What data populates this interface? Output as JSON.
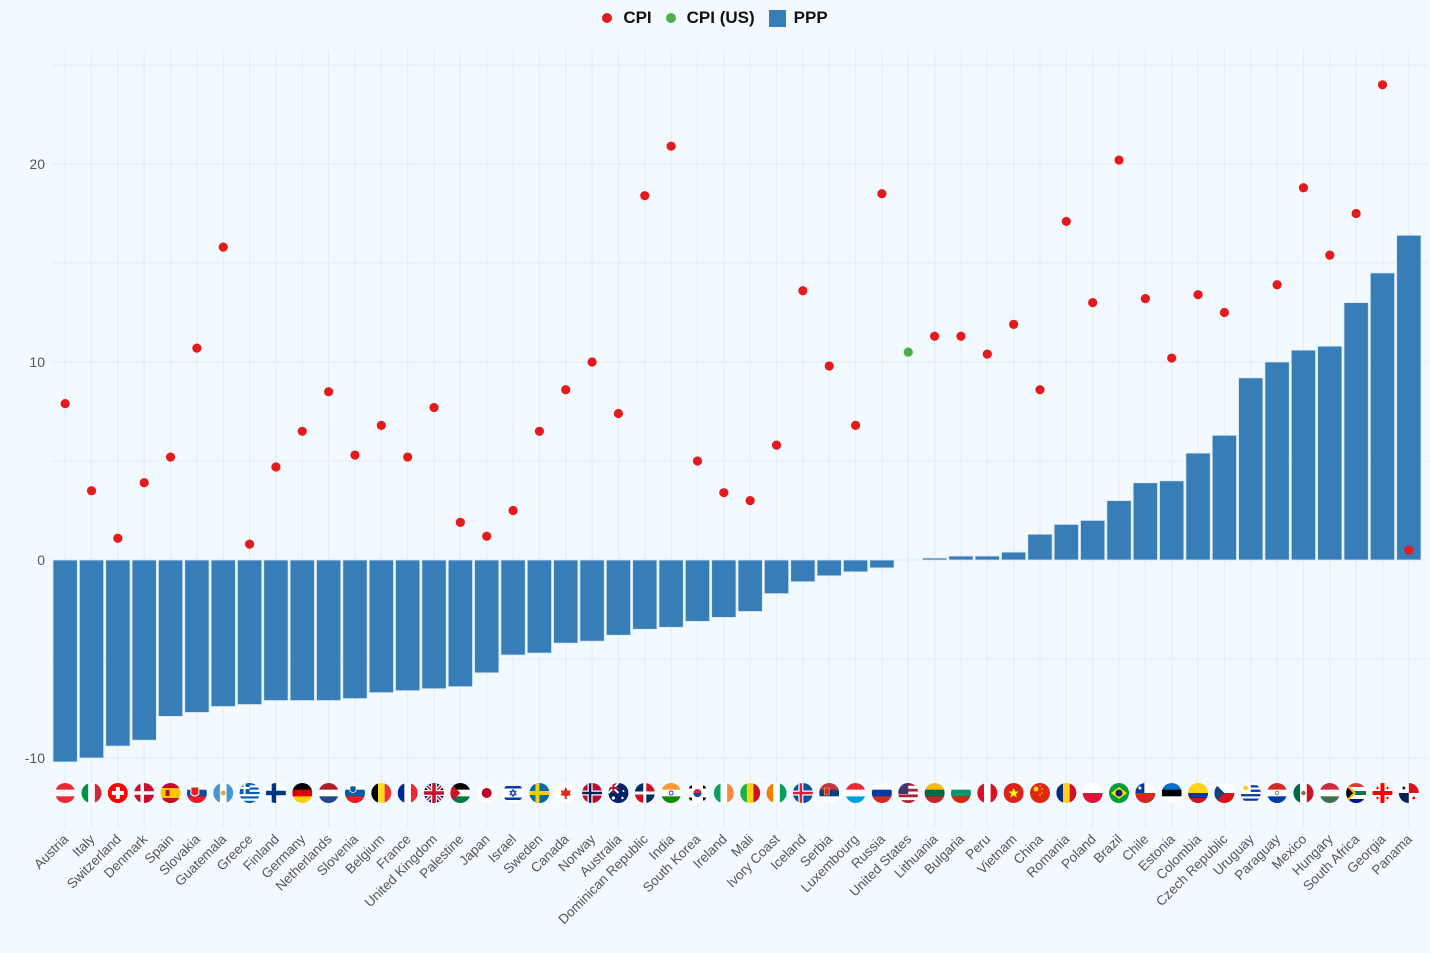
{
  "chart_data": {
    "type": "bar",
    "title": "",
    "xlabel": "",
    "ylabel": "",
    "ylim": [
      -12.5,
      25
    ],
    "yticks": [
      -10,
      0,
      10,
      20
    ],
    "grid": true,
    "legend_position": "top-center",
    "legend": [
      {
        "name": "CPI",
        "marker": "dot",
        "color": "#e41a1c"
      },
      {
        "name": "CPI (US)",
        "marker": "dot",
        "color": "#4daf4a"
      },
      {
        "name": "PPP",
        "marker": "square",
        "color": "#377eb8"
      }
    ],
    "categories": [
      "Austria",
      "Italy",
      "Switzerland",
      "Denmark",
      "Spain",
      "Slovakia",
      "Guatemala",
      "Greece",
      "Finland",
      "Germany",
      "Netherlands",
      "Slovenia",
      "Belgium",
      "France",
      "United Kingdom",
      "Palestine",
      "Japan",
      "Israel",
      "Sweden",
      "Canada",
      "Norway",
      "Australia",
      "Dominican Republic",
      "India",
      "South Korea",
      "Ireland",
      "Mali",
      "Ivory Coast",
      "Iceland",
      "Serbia",
      "Luxembourg",
      "Russia",
      "United States",
      "Lithuania",
      "Bulgaria",
      "Peru",
      "Vietnam",
      "China",
      "Romania",
      "Poland",
      "Brazil",
      "Chile",
      "Estonia",
      "Colombia",
      "Czech Republic",
      "Uruguay",
      "Paraguay",
      "Mexico",
      "Hungary",
      "South Africa",
      "Georgia",
      "Panama"
    ],
    "flags": [
      "AT",
      "IT",
      "CH",
      "DK",
      "ES",
      "SK",
      "GT",
      "GR",
      "FI",
      "DE",
      "NL",
      "SI",
      "BE",
      "FR",
      "GB",
      "PS",
      "JP",
      "IL",
      "SE",
      "CA",
      "NO",
      "AU",
      "DO",
      "IN",
      "KR",
      "IE",
      "ML",
      "CI",
      "IS",
      "RS",
      "LU",
      "RU",
      "US",
      "LT",
      "BG",
      "PE",
      "VN",
      "CN",
      "RO",
      "PL",
      "BR",
      "CL",
      "EE",
      "CO",
      "CZ",
      "UY",
      "PY",
      "MX",
      "HU",
      "ZA",
      "GE",
      "PA"
    ],
    "series": [
      {
        "name": "PPP",
        "type": "bar",
        "color": "#377eb8",
        "values": [
          -10.2,
          -10.0,
          -9.4,
          -9.1,
          -7.9,
          -7.7,
          -7.4,
          -7.3,
          -7.1,
          -7.1,
          -7.1,
          -7.0,
          -6.7,
          -6.6,
          -6.5,
          -6.4,
          -5.7,
          -4.8,
          -4.7,
          -4.2,
          -4.1,
          -3.8,
          -3.5,
          -3.4,
          -3.1,
          -2.9,
          -2.6,
          -1.7,
          -1.1,
          -0.8,
          -0.6,
          -0.4,
          0.0,
          0.1,
          0.2,
          0.2,
          0.4,
          1.3,
          1.8,
          2.0,
          3.0,
          3.9,
          4.0,
          5.4,
          6.3,
          9.2,
          10.0,
          10.6,
          10.8,
          13.0,
          14.5,
          16.4
        ]
      },
      {
        "name": "CPI",
        "type": "scatter",
        "color": "#e41a1c",
        "values": [
          7.9,
          3.5,
          1.1,
          3.9,
          5.2,
          10.7,
          15.8,
          0.8,
          4.7,
          6.5,
          8.5,
          5.3,
          6.8,
          5.2,
          7.7,
          1.9,
          1.2,
          2.5,
          6.5,
          8.6,
          10.0,
          7.4,
          18.4,
          20.9,
          5.0,
          3.4,
          3.0,
          5.8,
          13.6,
          9.8,
          6.8,
          18.5,
          null,
          11.3,
          11.3,
          10.4,
          11.9,
          8.6,
          17.1,
          13.0,
          20.2,
          13.2,
          10.2,
          13.4,
          12.5,
          null,
          13.9,
          18.8,
          15.4,
          17.5,
          24.0,
          0.5
        ]
      },
      {
        "name": "CPI (US)",
        "type": "scatter",
        "color": "#4daf4a",
        "values": [
          null,
          null,
          null,
          null,
          null,
          null,
          null,
          null,
          null,
          null,
          null,
          null,
          null,
          null,
          null,
          null,
          null,
          null,
          null,
          null,
          null,
          null,
          null,
          null,
          null,
          null,
          null,
          null,
          null,
          null,
          null,
          null,
          10.5,
          null,
          null,
          null,
          null,
          null,
          null,
          null,
          null,
          null,
          null,
          null,
          null,
          null,
          null,
          null,
          null,
          null,
          null,
          null
        ]
      }
    ]
  }
}
